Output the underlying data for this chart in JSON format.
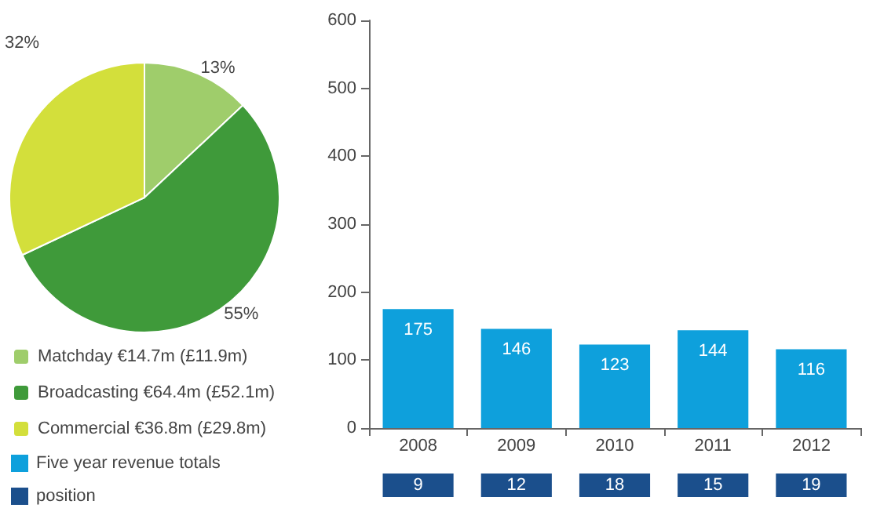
{
  "chart_data": [
    {
      "type": "pie",
      "categories": [
        "Matchday €14.7m (£11.9m)",
        "Broadcasting €64.4m (£52.1m)",
        "Commercial €36.8m (£29.8m)"
      ],
      "values": [
        13,
        55,
        32
      ],
      "colors": [
        "#9fcd6b",
        "#3f9a3a",
        "#d3df3b"
      ],
      "value_labels": [
        "13%",
        "55%",
        "32%"
      ],
      "legend": "bottom"
    },
    {
      "type": "bar",
      "categories": [
        "2008",
        "2009",
        "2010",
        "2011",
        "2012"
      ],
      "series": [
        {
          "name": "Five year revenue totals",
          "color": "#0ea0dc",
          "values": [
            175,
            146,
            123,
            144,
            116
          ]
        }
      ],
      "ylim": [
        0,
        600
      ],
      "yticks": [
        0,
        100,
        200,
        300,
        400,
        500,
        600
      ],
      "data_labels": true,
      "legend": "bottom left"
    },
    {
      "type": "other",
      "categories": [
        null,
        null,
        null,
        null,
        null
      ],
      "series": [
        {
          "name": "position",
          "color": "#1b4f8c",
          "values": [
            9,
            12,
            18,
            15,
            19
          ]
        }
      ],
      "data_labels": true,
      "legend": "bottom left"
    }
  ]
}
